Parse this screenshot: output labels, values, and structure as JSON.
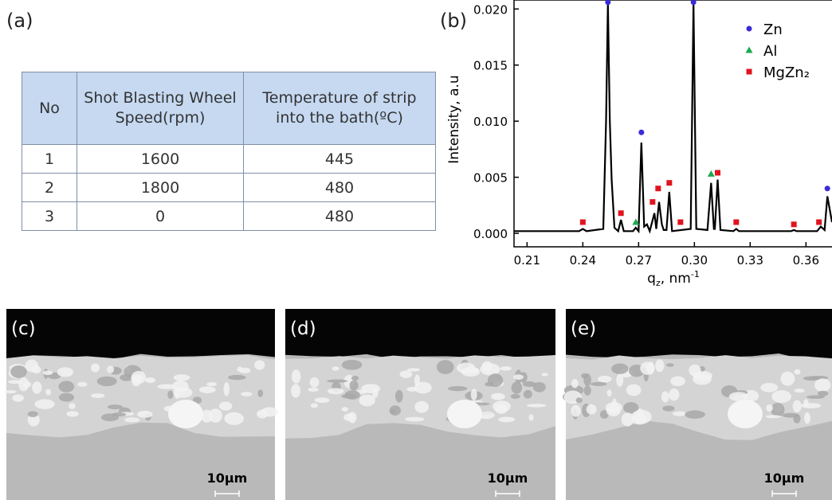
{
  "panel_labels": {
    "a": "(a)",
    "b": "(b)"
  },
  "table": {
    "header": [
      "No",
      "Shot Blasting Wheel Speed(rpm)",
      "Temperature of strip into the bath(ºC)"
    ],
    "rows": [
      [
        "1",
        "1600",
        "445"
      ],
      [
        "2",
        "1800",
        "480"
      ],
      [
        "3",
        "0",
        "480"
      ]
    ]
  },
  "chart_data": {
    "type": "line",
    "ylabel": "Intensity, a.u",
    "xlabel": [
      "q",
      "z",
      ", nm",
      "-1"
    ],
    "color": "#000000",
    "x": [
      0.203,
      0.238,
      0.24,
      0.242,
      0.251,
      0.2525,
      0.2535,
      0.2545,
      0.2555,
      0.257,
      0.259,
      0.2605,
      0.262,
      0.267,
      0.2685,
      0.27,
      0.2715,
      0.273,
      0.2745,
      0.276,
      0.2785,
      0.2795,
      0.281,
      0.2825,
      0.2835,
      0.285,
      0.2865,
      0.288,
      0.298,
      0.2995,
      0.301,
      0.307,
      0.309,
      0.3105,
      0.311,
      0.3125,
      0.314,
      0.321,
      0.3225,
      0.324,
      0.352,
      0.3535,
      0.355,
      0.366,
      0.368,
      0.37,
      0.3715,
      0.374
    ],
    "values": [
      0.0002,
      0.0002,
      0.0004,
      0.0002,
      0.0004,
      0.01,
      0.0205,
      0.01,
      0.0048,
      0.0005,
      0.0002,
      0.0012,
      0.0002,
      0.0002,
      0.0005,
      0.0002,
      0.0081,
      0.0006,
      0.0008,
      0.0002,
      0.0018,
      0.0004,
      0.0028,
      0.0008,
      0.0003,
      0.0003,
      0.0037,
      0.0002,
      0.0004,
      0.0205,
      0.0004,
      0.0003,
      0.0045,
      0.0004,
      0.0004,
      0.0048,
      0.0003,
      0.0002,
      0.0004,
      0.0002,
      0.0002,
      0.0003,
      0.0002,
      0.0002,
      0.0006,
      0.0003,
      0.0033,
      0.001
    ],
    "series": [
      {
        "name": "Zn",
        "color": "#3a2bd8",
        "marker": "circle",
        "x": [
          0.2535,
          0.2715,
          0.2995,
          0.3715
        ],
        "values": [
          0.0206,
          0.009,
          0.0206,
          0.004
        ]
      },
      {
        "name": "Al",
        "color": "#1fa84f",
        "marker": "triangle",
        "x": [
          0.2685,
          0.309
        ],
        "values": [
          0.001,
          0.0053
        ]
      },
      {
        "name": "MgZn₂",
        "color": "#e0141e",
        "marker": "square",
        "x": [
          0.24,
          0.2605,
          0.2775,
          0.2805,
          0.2865,
          0.2925,
          0.3125,
          0.3225,
          0.3535,
          0.367
        ],
        "values": [
          0.001,
          0.0018,
          0.0028,
          0.004,
          0.0045,
          0.001,
          0.0054,
          0.001,
          0.0008,
          0.001
        ]
      }
    ],
    "xlim": [
      0.203,
      0.374
    ],
    "ylim": [
      -0.0012,
      0.0208
    ],
    "xticks": [
      0.21,
      0.24,
      0.27,
      {
        "value": 0.3,
        "label": "0.30"
      },
      0.33,
      0.36
    ],
    "yticks": [
      {
        "value": 0,
        "label": "0.000"
      },
      {
        "value": 0.005,
        "label": "0.005"
      },
      {
        "value": 0.01,
        "label": "0.010"
      },
      {
        "value": 0.015,
        "label": "0.015"
      },
      {
        "value": 0.02,
        "label": "0.020"
      }
    ]
  },
  "micrographs": [
    {
      "label": "(c)",
      "scale_bar": "10µm"
    },
    {
      "label": "(d)",
      "scale_bar": "10µm"
    },
    {
      "label": "(e)",
      "scale_bar": "10µm"
    }
  ]
}
